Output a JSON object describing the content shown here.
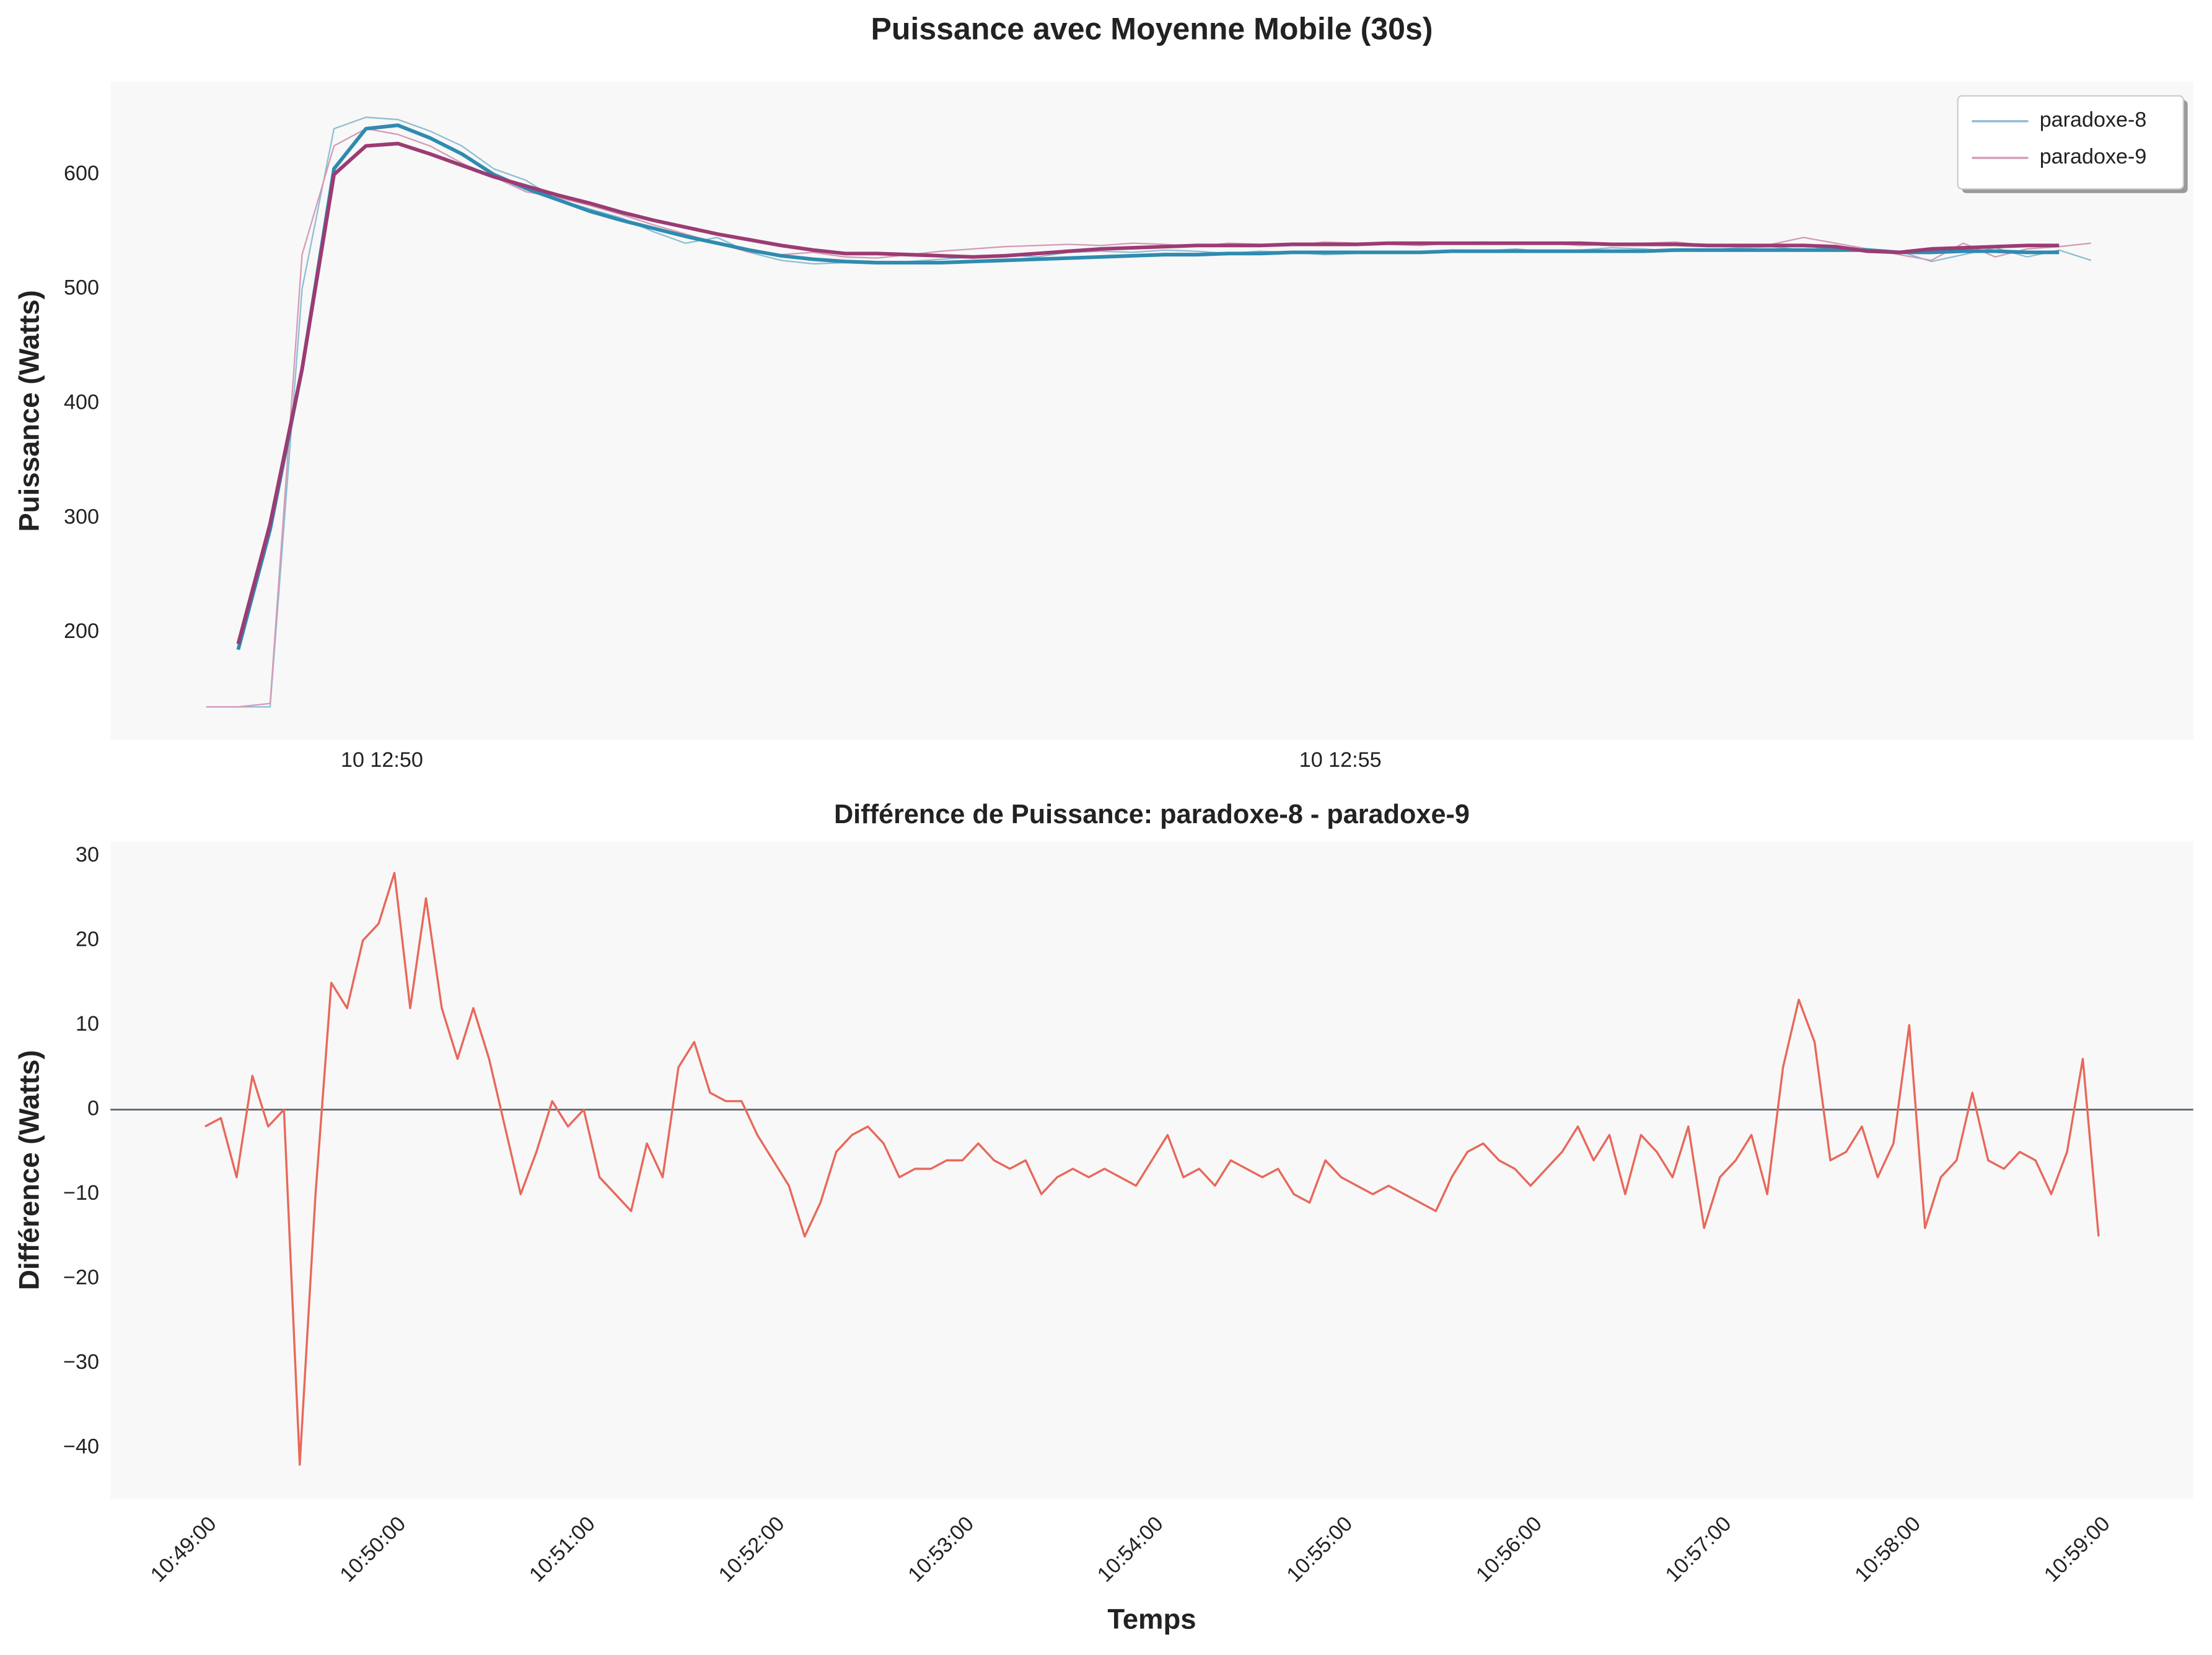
{
  "chart_data": [
    {
      "type": "line",
      "title": "Puissance avec Moyenne Mobile (30s)",
      "ylabel": "Puissance (Watts)",
      "x": [
        "12:49:05",
        "12:49:15",
        "12:49:25",
        "12:49:35",
        "12:49:45",
        "12:49:55",
        "12:50:05",
        "12:50:15",
        "12:50:25",
        "12:50:35",
        "12:50:45",
        "12:50:55",
        "12:51:05",
        "12:51:15",
        "12:51:25",
        "12:51:35",
        "12:51:45",
        "12:51:55",
        "12:52:05",
        "12:52:15",
        "12:52:25",
        "12:52:35",
        "12:52:45",
        "12:52:55",
        "12:53:05",
        "12:53:15",
        "12:53:25",
        "12:53:35",
        "12:53:45",
        "12:53:55",
        "12:54:05",
        "12:54:15",
        "12:54:25",
        "12:54:35",
        "12:54:45",
        "12:54:55",
        "12:55:05",
        "12:55:15",
        "12:55:25",
        "12:55:35",
        "12:55:45",
        "12:55:55",
        "12:56:05",
        "12:56:15",
        "12:56:25",
        "12:56:35",
        "12:56:45",
        "12:56:55",
        "12:57:05",
        "12:57:15",
        "12:57:25",
        "12:57:35",
        "12:57:45",
        "12:57:55",
        "12:58:05",
        "12:58:15",
        "12:58:25",
        "12:58:35",
        "12:58:45",
        "12:58:55"
      ],
      "series": [
        {
          "name": "paradoxe-8",
          "color": "#8dbdd3",
          "linewidth": 1,
          "values": [
            135,
            135,
            135,
            500,
            640,
            650,
            648,
            638,
            625,
            605,
            595,
            578,
            570,
            562,
            550,
            540,
            545,
            532,
            525,
            522,
            523,
            522,
            524,
            526,
            528,
            530,
            528,
            532,
            533,
            532,
            534,
            533,
            531,
            533,
            532,
            530,
            531,
            533,
            532,
            534,
            533,
            535,
            532,
            534,
            536,
            535,
            533,
            534,
            536,
            537,
            534,
            537,
            535,
            533,
            524,
            530,
            536,
            528,
            534,
            525
          ]
        },
        {
          "name": "paradoxe-9",
          "color": "#d39ab7",
          "linewidth": 1,
          "values": [
            135,
            135,
            138,
            530,
            625,
            640,
            635,
            625,
            610,
            598,
            585,
            580,
            573,
            565,
            556,
            548,
            540,
            532,
            530,
            532,
            528,
            527,
            530,
            533,
            535,
            537,
            538,
            539,
            538,
            540,
            539,
            537,
            540,
            539,
            538,
            541,
            540,
            539,
            538,
            540,
            541,
            539,
            540,
            538,
            539,
            540,
            541,
            538,
            537,
            539,
            545,
            540,
            535,
            530,
            525,
            540,
            528,
            535,
            537,
            540
          ]
        },
        {
          "color": "#2e8bb0",
          "linewidth": 2.6,
          "values": [
            null,
            185,
            290,
            430,
            605,
            640,
            643,
            632,
            618,
            600,
            588,
            578,
            568,
            560,
            553,
            546,
            540,
            534,
            529,
            526,
            524,
            523,
            523,
            523,
            524,
            525,
            526,
            527,
            528,
            529,
            530,
            530,
            531,
            531,
            532,
            532,
            532,
            532,
            532,
            533,
            533,
            533,
            533,
            533,
            533,
            533,
            534,
            534,
            534,
            534,
            534,
            534,
            534,
            532,
            532,
            533,
            533,
            532,
            532,
            null
          ]
        },
        {
          "color": "#9c3b73",
          "linewidth": 2.6,
          "values": [
            null,
            190,
            295,
            430,
            600,
            625,
            627,
            618,
            608,
            598,
            590,
            582,
            575,
            567,
            560,
            554,
            548,
            543,
            538,
            534,
            531,
            531,
            530,
            529,
            528,
            529,
            531,
            533,
            535,
            536,
            537,
            538,
            538,
            538,
            539,
            539,
            539,
            540,
            540,
            540,
            540,
            540,
            540,
            540,
            539,
            539,
            539,
            538,
            538,
            538,
            538,
            537,
            533,
            532,
            535,
            536,
            537,
            538,
            538,
            null
          ]
        }
      ],
      "xlim": [
        "12:48:35",
        "12:59:27"
      ],
      "xticks": [
        {
          "value": "12:50:00",
          "label": "10 12:50"
        },
        {
          "value": "12:55:00",
          "label": "10 12:55"
        }
      ],
      "ylim": [
        106,
        681
      ],
      "yticks": [
        200,
        300,
        400,
        500,
        600
      ],
      "grid": false,
      "legend": "upper right"
    },
    {
      "type": "line",
      "title": "Différence de Puissance: paradoxe-8 - paradoxe-9",
      "ylabel": "Différence (Watts)",
      "xlabel": "Temps",
      "x": [
        "10:49:00",
        "10:49:05",
        "10:49:10",
        "10:49:15",
        "10:49:20",
        "10:49:25",
        "10:49:30",
        "10:49:35",
        "10:49:40",
        "10:49:45",
        "10:49:50",
        "10:49:55",
        "10:50:00",
        "10:50:05",
        "10:50:10",
        "10:50:15",
        "10:50:20",
        "10:50:25",
        "10:50:30",
        "10:50:35",
        "10:50:40",
        "10:50:45",
        "10:50:50",
        "10:50:55",
        "10:51:00",
        "10:51:05",
        "10:51:10",
        "10:51:15",
        "10:51:20",
        "10:51:25",
        "10:51:30",
        "10:51:35",
        "10:51:40",
        "10:51:45",
        "10:51:50",
        "10:51:55",
        "10:52:00",
        "10:52:05",
        "10:52:10",
        "10:52:15",
        "10:52:20",
        "10:52:25",
        "10:52:30",
        "10:52:35",
        "10:52:40",
        "10:52:45",
        "10:52:50",
        "10:52:55",
        "10:53:00",
        "10:53:05",
        "10:53:10",
        "10:53:15",
        "10:53:20",
        "10:53:25",
        "10:53:30",
        "10:53:35",
        "10:53:40",
        "10:53:45",
        "10:53:50",
        "10:53:55",
        "10:54:00",
        "10:54:05",
        "10:54:10",
        "10:54:15",
        "10:54:20",
        "10:54:25",
        "10:54:30",
        "10:54:35",
        "10:54:40",
        "10:54:45",
        "10:54:50",
        "10:54:55",
        "10:55:00",
        "10:55:05",
        "10:55:10",
        "10:55:15",
        "10:55:20",
        "10:55:25",
        "10:55:30",
        "10:55:35",
        "10:55:40",
        "10:55:45",
        "10:55:50",
        "10:55:55",
        "10:56:00",
        "10:56:05",
        "10:56:10",
        "10:56:15",
        "10:56:20",
        "10:56:25",
        "10:56:30",
        "10:56:35",
        "10:56:40",
        "10:56:45",
        "10:56:50",
        "10:56:55",
        "10:57:00",
        "10:57:05",
        "10:57:10",
        "10:57:15",
        "10:57:20",
        "10:57:25",
        "10:57:30",
        "10:57:35",
        "10:57:40",
        "10:57:45",
        "10:57:50",
        "10:57:55",
        "10:58:00",
        "10:58:05",
        "10:58:10",
        "10:58:15",
        "10:58:20",
        "10:58:25",
        "10:58:30",
        "10:58:35",
        "10:58:40",
        "10:58:45",
        "10:58:50",
        "10:58:55",
        "10:59:00"
      ],
      "series": [
        {
          "color": "#e8685a",
          "linewidth": 1.5,
          "values": [
            -2,
            -1,
            -8,
            4,
            -2,
            0,
            -42,
            -10,
            15,
            12,
            20,
            22,
            28,
            12,
            25,
            12,
            6,
            12,
            6,
            -2,
            -10,
            -5,
            1,
            -2,
            0,
            -8,
            -10,
            -12,
            -4,
            -8,
            5,
            8,
            2,
            1,
            1,
            -3,
            -6,
            -9,
            -15,
            -11,
            -5,
            -3,
            -2,
            -4,
            -8,
            -7,
            -7,
            -6,
            -6,
            -4,
            -6,
            -7,
            -6,
            -10,
            -8,
            -7,
            -8,
            -7,
            -8,
            -9,
            -6,
            -3,
            -8,
            -7,
            -9,
            -6,
            -7,
            -8,
            -7,
            -10,
            -11,
            -6,
            -8,
            -9,
            -10,
            -9,
            -10,
            -11,
            -12,
            -8,
            -5,
            -4,
            -6,
            -7,
            -9,
            -7,
            -5,
            -2,
            -6,
            -3,
            -10,
            -3,
            -5,
            -8,
            -2,
            -14,
            -8,
            -6,
            -3,
            -10,
            5,
            13,
            8,
            -6,
            -5,
            -2,
            -8,
            -4,
            10,
            -14,
            -8,
            -6,
            2,
            -6,
            -7,
            -5,
            -6,
            -10,
            -5,
            6,
            -15
          ]
        }
      ],
      "xlim": [
        "10:48:30",
        "10:59:30"
      ],
      "xticks": [
        "10:49:00",
        "10:50:00",
        "10:51:00",
        "10:52:00",
        "10:53:00",
        "10:54:00",
        "10:55:00",
        "10:56:00",
        "10:57:00",
        "10:58:00",
        "10:59:00"
      ],
      "ylim": [
        -46,
        31.7
      ],
      "yticks": [
        {
          "value": -40,
          "label": "−40"
        },
        {
          "value": -30,
          "label": "−30"
        },
        {
          "value": -20,
          "label": "−20"
        },
        {
          "value": -10,
          "label": "−10"
        },
        0,
        10,
        20,
        30
      ],
      "reference_line": 0,
      "reference_line_color": "#5a6570",
      "grid": false
    }
  ]
}
